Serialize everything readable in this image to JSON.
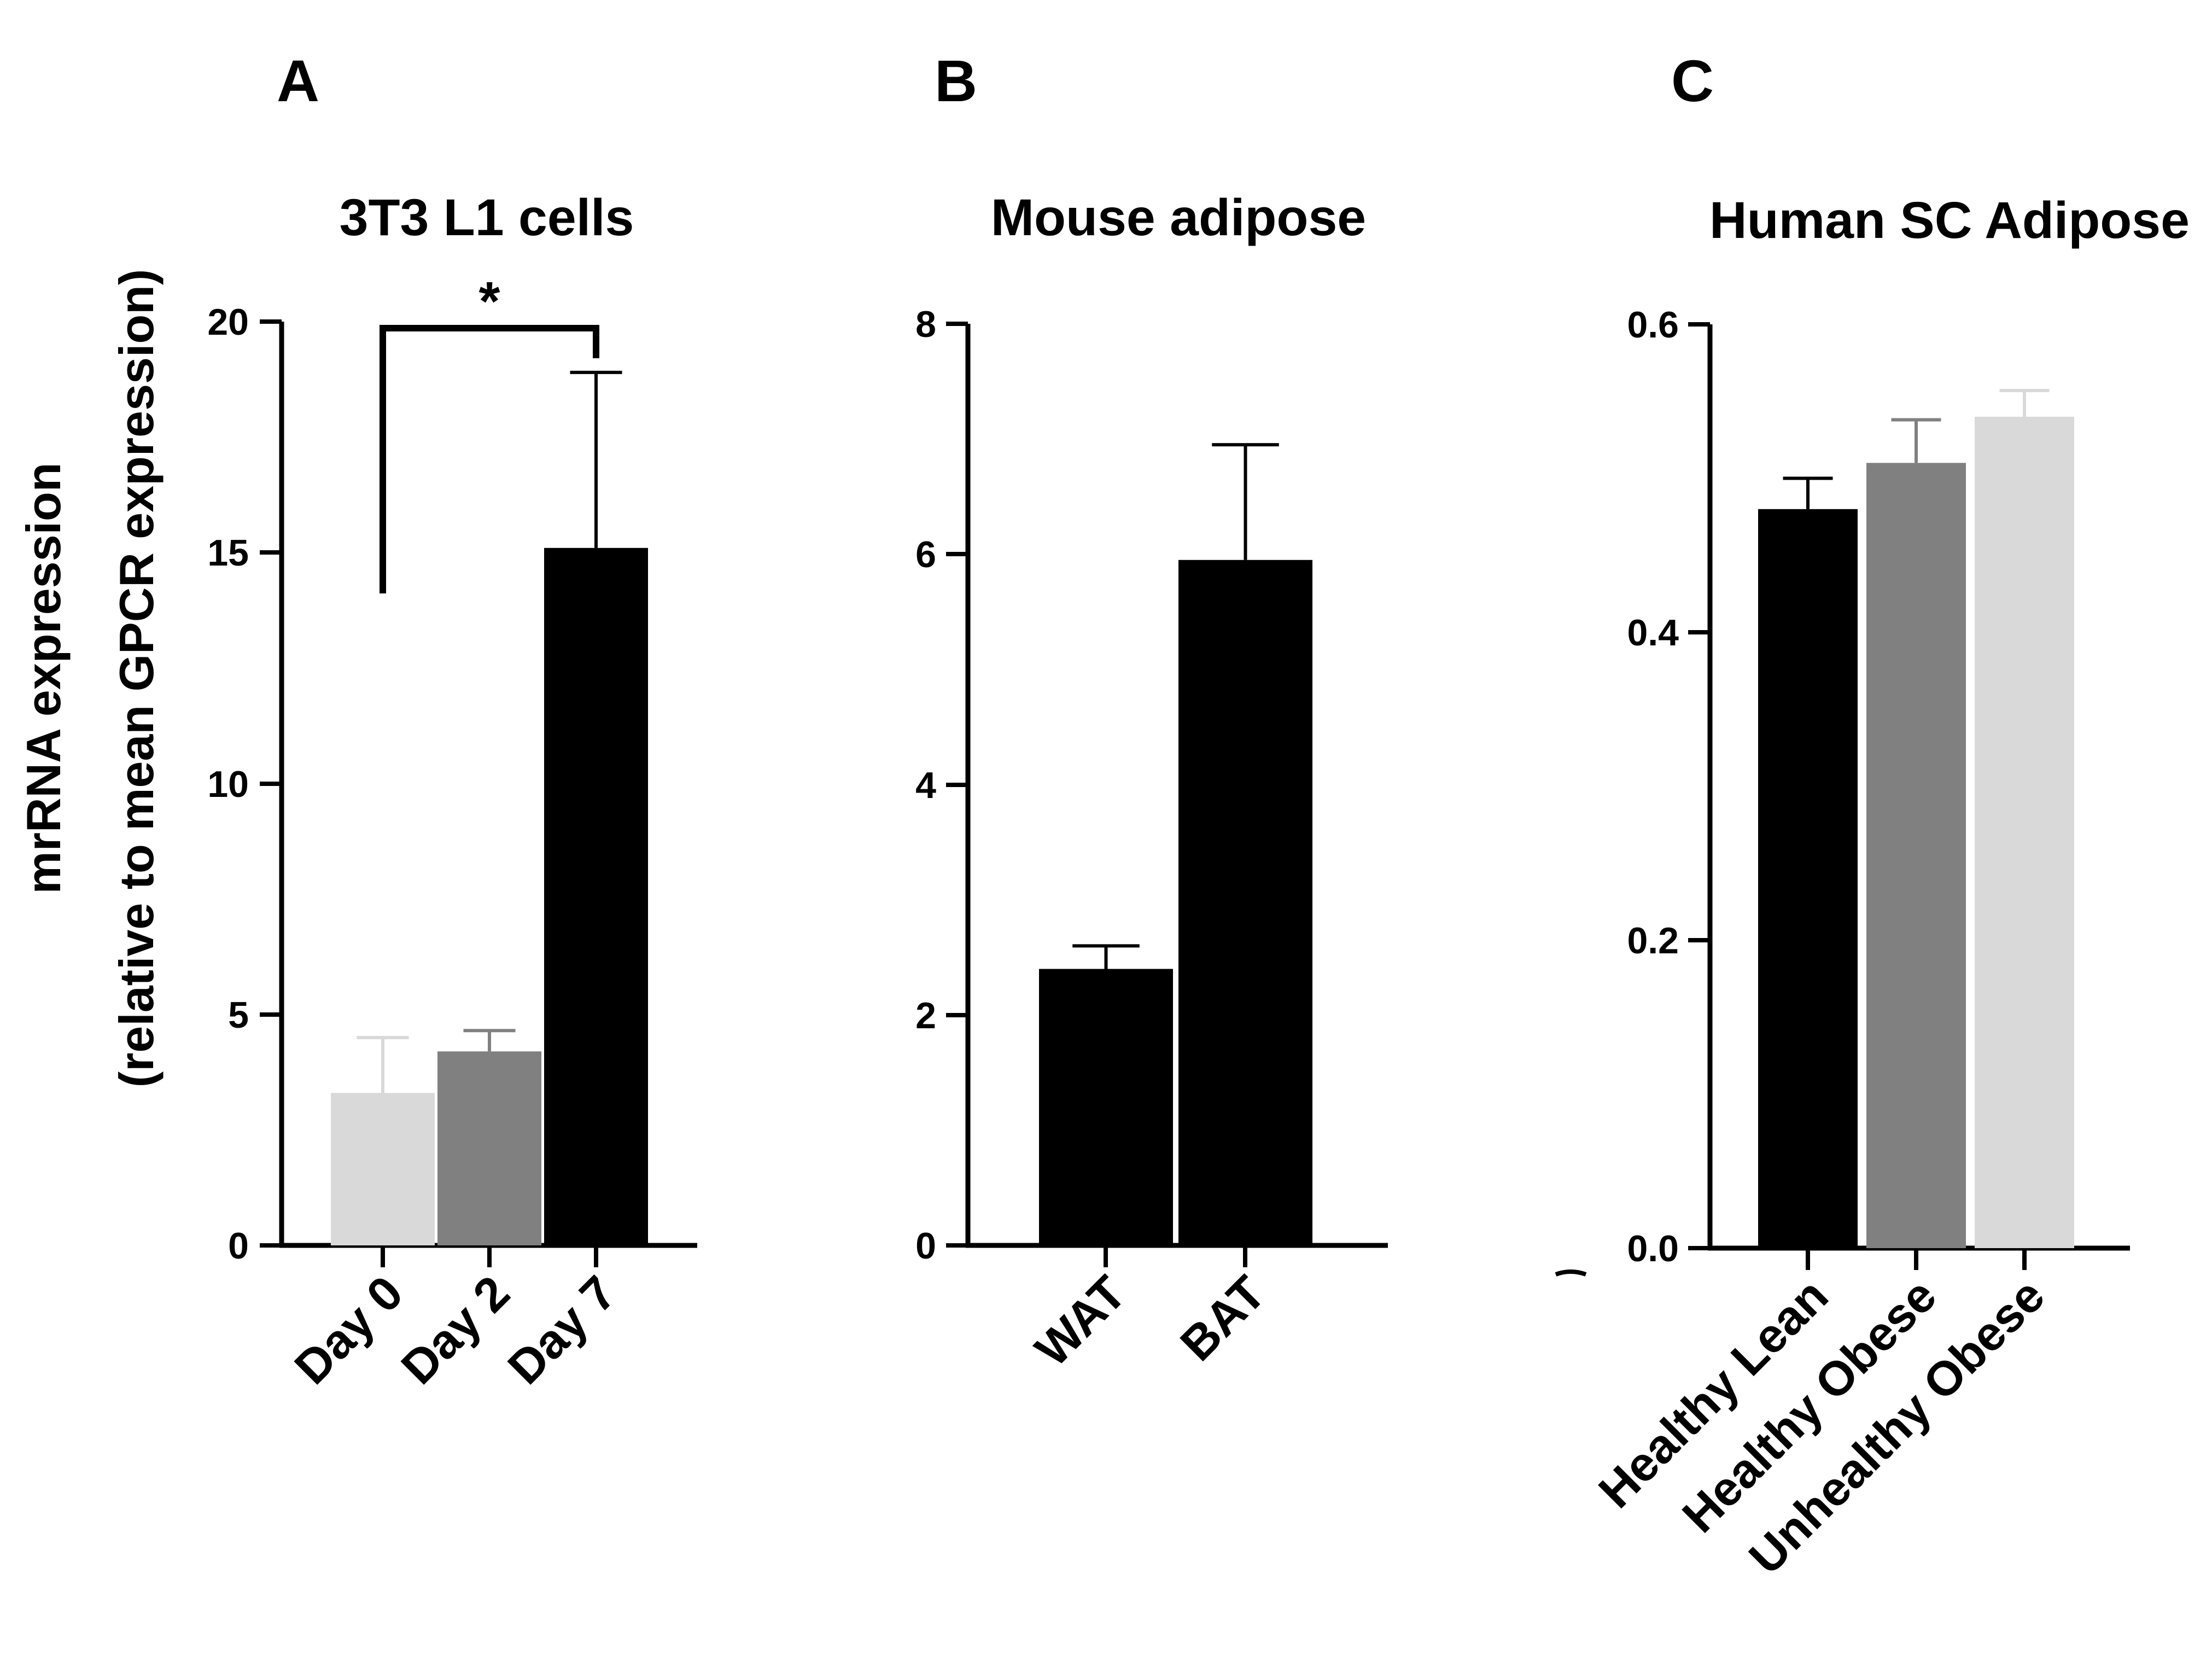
{
  "chart_data": [
    {
      "panel": "A",
      "type": "bar",
      "title": "3T3 L1 cells",
      "ylabel_lines": [
        "mrRNA expression",
        "(relative to mean GPCR expression)"
      ],
      "xlabel": "",
      "categories": [
        "Day 0",
        "Day 2",
        "Day 7"
      ],
      "values": [
        3.3,
        4.2,
        15.1
      ],
      "errors": [
        1.2,
        0.45,
        3.8
      ],
      "colors": [
        "#d9d9d9",
        "#808080",
        "#000000"
      ],
      "ylim": [
        0,
        20
      ],
      "yticks": [
        "0",
        "5",
        "10",
        "15",
        "20"
      ],
      "significance": {
        "from": "Day 0",
        "to": "Day 7",
        "label": "*"
      }
    },
    {
      "panel": "B",
      "type": "bar",
      "title": "Mouse adipose",
      "xlabel": "",
      "categories": [
        "WAT",
        "BAT"
      ],
      "values": [
        2.4,
        5.95
      ],
      "errors": [
        0.2,
        1.0
      ],
      "colors": [
        "#000000",
        "#000000"
      ],
      "ylim": [
        0,
        8
      ],
      "yticks": [
        "0",
        "2",
        "4",
        "6",
        "8"
      ]
    },
    {
      "panel": "C",
      "type": "bar",
      "title": "Human SC Adipose",
      "xlabel": "",
      "categories": [
        "Healthy Lean",
        "Healthy Obese",
        "Unhealthy Obese"
      ],
      "values": [
        0.48,
        0.51,
        0.54
      ],
      "errors": [
        0.02,
        0.028,
        0.017
      ],
      "colors": [
        "#000000",
        "#808080",
        "#d9d9d9"
      ],
      "ylim": [
        0,
        0.6
      ],
      "yticks": [
        "0.0",
        "0.2",
        "0.4",
        "0.6"
      ]
    }
  ]
}
